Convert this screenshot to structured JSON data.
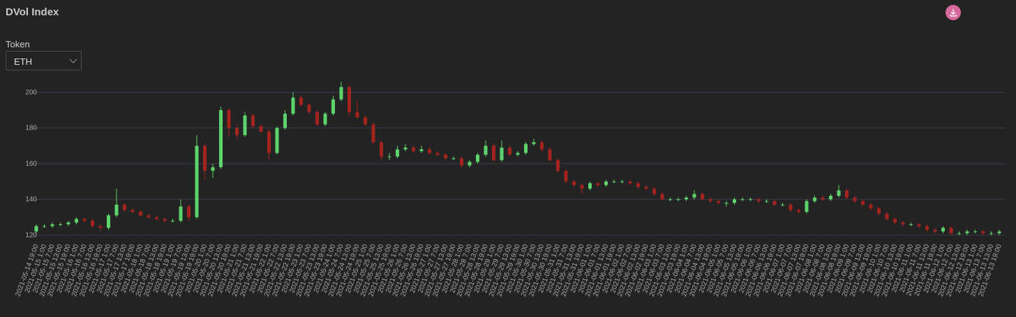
{
  "header": {
    "title": "DVol Index"
  },
  "controls": {
    "token_label": "Token",
    "token_value": "ETH"
  },
  "chart_data": {
    "type": "candlestick",
    "categories": [
      "2021-05-14 19:00",
      "2021-05-15 1:00",
      "2021-05-15 7:00",
      "2021-05-15 13:00",
      "2021-05-15 19:00",
      "2021-05-16 1:00",
      "2021-05-16 7:00",
      "2021-05-16 13:00",
      "2021-05-16 19:00",
      "2021-05-17 1:00",
      "2021-05-17 7:00",
      "2021-05-17 13:00",
      "2021-05-17 19:00",
      "2021-05-18 1:00",
      "2021-05-18 7:00",
      "2021-05-18 13:00",
      "2021-05-18 19:00",
      "2021-05-19 1:00",
      "2021-05-19 7:00",
      "2021-05-19 13:00",
      "2021-05-19 19:00",
      "2021-05-20 1:00",
      "2021-05-20 7:00",
      "2021-05-20 13:00",
      "2021-05-20 19:00",
      "2021-05-21 1:00",
      "2021-05-21 7:00",
      "2021-05-21 13:00",
      "2021-05-21 19:00",
      "2021-05-22 1:00",
      "2021-05-22 7:00",
      "2021-05-22 13:00",
      "2021-05-22 19:00",
      "2021-05-23 1:00",
      "2021-05-23 7:00",
      "2021-05-23 13:00",
      "2021-05-23 19:00",
      "2021-05-24 1:00",
      "2021-05-24 7:00",
      "2021-05-24 13:00",
      "2021-05-24 19:00",
      "2021-05-25 1:00",
      "2021-05-25 7:00",
      "2021-05-25 13:00",
      "2021-05-25 19:00",
      "2021-05-26 1:00",
      "2021-05-26 7:00",
      "2021-05-26 13:00",
      "2021-05-26 19:00",
      "2021-05-27 1:00",
      "2021-05-27 7:00",
      "2021-05-27 13:00",
      "2021-05-27 19:00",
      "2021-05-28 1:00",
      "2021-05-28 7:00",
      "2021-05-28 13:00",
      "2021-05-28 19:00",
      "2021-05-29 1:00",
      "2021-05-29 7:00",
      "2021-05-29 13:00",
      "2021-05-29 19:00",
      "2021-05-30 1:00",
      "2021-05-30 7:00",
      "2021-05-30 13:00",
      "2021-05-30 19:00",
      "2021-05-31 1:00",
      "2021-05-31 7:00",
      "2021-05-31 13:00",
      "2021-05-31 19:00",
      "2021-06-01 1:00",
      "2021-06-01 7:00",
      "2021-06-01 13:00",
      "2021-06-01 19:00",
      "2021-06-02 1:00",
      "2021-06-02 7:00",
      "2021-06-02 13:00",
      "2021-06-02 19:00",
      "2021-06-03 1:00",
      "2021-06-03 7:00",
      "2021-06-03 13:00",
      "2021-06-03 19:00",
      "2021-06-04 1:00",
      "2021-06-04 7:00",
      "2021-06-04 13:00",
      "2021-06-04 19:00",
      "2021-06-05 1:00",
      "2021-06-05 7:00",
      "2021-06-05 13:00",
      "2021-06-05 19:00",
      "2021-06-06 1:00",
      "2021-06-06 7:00",
      "2021-06-06 13:00",
      "2021-06-06 19:00",
      "2021-06-07 1:00",
      "2021-06-07 7:00",
      "2021-06-07 13:00",
      "2021-06-07 19:00",
      "2021-06-08 1:00",
      "2021-06-08 7:00",
      "2021-06-08 13:00",
      "2021-06-08 19:00",
      "2021-06-09 1:00",
      "2021-06-09 7:00",
      "2021-06-09 13:00",
      "2021-06-09 19:00",
      "2021-06-10 1:00",
      "2021-06-10 7:00",
      "2021-06-10 13:00",
      "2021-06-10 19:00",
      "2021-06-11 1:00",
      "2021-06-11 7:00",
      "2021-06-11 13:00",
      "2021-06-11 19:00",
      "2021-06-12 1:00",
      "2021-06-12 7:00",
      "2021-06-12 13:00",
      "2021-06-12 19:00",
      "2021-06-13 1:00",
      "2021-06-13 7:00",
      "2021-06-13 13:00",
      "2021-06-13 19:00"
    ],
    "open": [
      122,
      125,
      125,
      126,
      126,
      127,
      129,
      128,
      125,
      124,
      131,
      137,
      134,
      133,
      131,
      130,
      129,
      128,
      128,
      136,
      130,
      170,
      156,
      158,
      190,
      180,
      176,
      187,
      181,
      178,
      166,
      180,
      188,
      197,
      193,
      189,
      182,
      188,
      196,
      203,
      189,
      186,
      182,
      172,
      164,
      164,
      168,
      169,
      167,
      168,
      166,
      165,
      163,
      163,
      159,
      161,
      165,
      170,
      162,
      169,
      165,
      166,
      171,
      172,
      168,
      162,
      156,
      150,
      148,
      146,
      149,
      148,
      150,
      150,
      150,
      149,
      147,
      146,
      143,
      140,
      140,
      140,
      141,
      143,
      140,
      139,
      138,
      138,
      140,
      140,
      140,
      139,
      139,
      137,
      137,
      134,
      133,
      139,
      141,
      140,
      142,
      145,
      141,
      139,
      137,
      135,
      132,
      129,
      127,
      126,
      126,
      125,
      123,
      122,
      124,
      121,
      121,
      122,
      122,
      121,
      121
    ],
    "high": [
      126,
      126,
      127,
      127,
      128,
      130,
      130,
      129,
      126,
      132,
      146,
      138,
      135,
      134,
      132,
      131,
      130,
      129,
      140,
      137,
      176,
      171,
      160,
      192,
      191,
      182,
      189,
      188,
      182,
      179,
      181,
      190,
      200,
      198,
      194,
      190,
      189,
      198,
      206,
      204,
      195,
      187,
      183,
      173,
      166,
      170,
      171,
      170,
      170,
      169,
      167,
      166,
      164,
      164,
      162,
      166,
      173,
      171,
      173,
      170,
      167,
      172,
      174,
      173,
      169,
      163,
      157,
      151,
      149,
      150,
      150,
      151,
      151,
      151,
      151,
      150,
      148,
      147,
      144,
      141,
      141,
      142,
      145,
      144,
      141,
      140,
      139,
      141,
      141,
      141,
      141,
      140,
      140,
      138,
      138,
      135,
      140,
      142,
      142,
      143,
      148,
      146,
      142,
      140,
      138,
      136,
      133,
      130,
      128,
      127,
      127,
      126,
      124,
      125,
      125,
      122,
      123,
      123,
      123,
      122,
      123
    ],
    "low": [
      121,
      124,
      124,
      125,
      125,
      126,
      127,
      124,
      123,
      123,
      130,
      133,
      132,
      130,
      129,
      128,
      127,
      127,
      127,
      128,
      129,
      151,
      152,
      157,
      175,
      174,
      175,
      180,
      177,
      162,
      165,
      179,
      187,
      192,
      188,
      181,
      181,
      187,
      195,
      187,
      185,
      181,
      171,
      162,
      162,
      163,
      167,
      166,
      166,
      165,
      164,
      162,
      162,
      158,
      158,
      160,
      164,
      161,
      161,
      164,
      164,
      165,
      170,
      167,
      161,
      155,
      149,
      147,
      143,
      145,
      147,
      147,
      149,
      149,
      148,
      146,
      145,
      142,
      139,
      139,
      139,
      139,
      140,
      139,
      138,
      137,
      136,
      137,
      139,
      139,
      138,
      138,
      136,
      136,
      133,
      132,
      132,
      138,
      139,
      139,
      141,
      140,
      138,
      136,
      134,
      131,
      128,
      126,
      125,
      125,
      124,
      122,
      121,
      121,
      120,
      120,
      120,
      121,
      120,
      120,
      120
    ],
    "close": [
      125,
      125,
      126,
      126,
      127,
      129,
      128,
      125,
      124,
      131,
      137,
      134,
      133,
      131,
      130,
      129,
      128,
      128,
      136,
      130,
      170,
      156,
      158,
      190,
      180,
      176,
      187,
      181,
      178,
      166,
      180,
      188,
      197,
      193,
      189,
      182,
      188,
      196,
      203,
      189,
      186,
      182,
      172,
      164,
      164,
      168,
      169,
      167,
      168,
      166,
      165,
      163,
      163,
      159,
      161,
      165,
      170,
      162,
      169,
      165,
      166,
      171,
      172,
      168,
      162,
      156,
      150,
      148,
      146,
      149,
      148,
      150,
      150,
      150,
      149,
      147,
      146,
      143,
      140,
      140,
      140,
      141,
      143,
      140,
      139,
      138,
      138,
      140,
      140,
      140,
      139,
      139,
      137,
      137,
      134,
      133,
      139,
      141,
      140,
      142,
      145,
      141,
      139,
      137,
      135,
      132,
      129,
      127,
      126,
      126,
      125,
      123,
      122,
      124,
      121,
      121,
      122,
      122,
      121,
      121,
      122
    ],
    "up_color": "#5fd36b",
    "down_color": "#a3231f",
    "ylim": [
      117,
      208
    ],
    "yticks": [
      120,
      140,
      160,
      180,
      200
    ],
    "grid": true,
    "grid_color": "#3b3a4c"
  }
}
